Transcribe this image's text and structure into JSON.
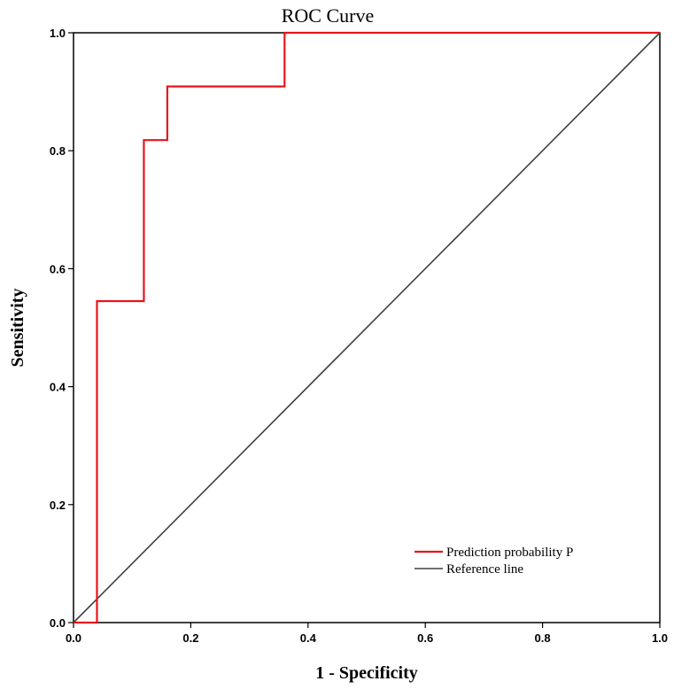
{
  "chart_data": {
    "type": "line",
    "title": "ROC Curve",
    "xlabel": "1 - Specificity",
    "ylabel": "Sensitivity",
    "xlim": [
      0,
      1
    ],
    "ylim": [
      0,
      1
    ],
    "x_ticks": [
      "0.0",
      "0.2",
      "0.4",
      "0.6",
      "0.8",
      "1.0"
    ],
    "y_ticks": [
      "0.0",
      "0.2",
      "0.4",
      "0.6",
      "0.8",
      "1.0"
    ],
    "grid": false,
    "legend_position": "bottom-right",
    "series": [
      {
        "name": "Prediction probability P",
        "color": "#e8141b",
        "step": true,
        "x": [
          0.0,
          0.04,
          0.04,
          0.04,
          0.12,
          0.12,
          0.16,
          0.16,
          0.36,
          0.36,
          1.0
        ],
        "y": [
          0.0,
          0.0,
          0.0,
          0.545,
          0.545,
          0.818,
          0.818,
          0.909,
          0.909,
          1.0,
          1.0
        ]
      },
      {
        "name": "Reference line",
        "color": "#404040",
        "x": [
          0.0,
          1.0
        ],
        "y": [
          0.0,
          1.0
        ]
      }
    ]
  }
}
